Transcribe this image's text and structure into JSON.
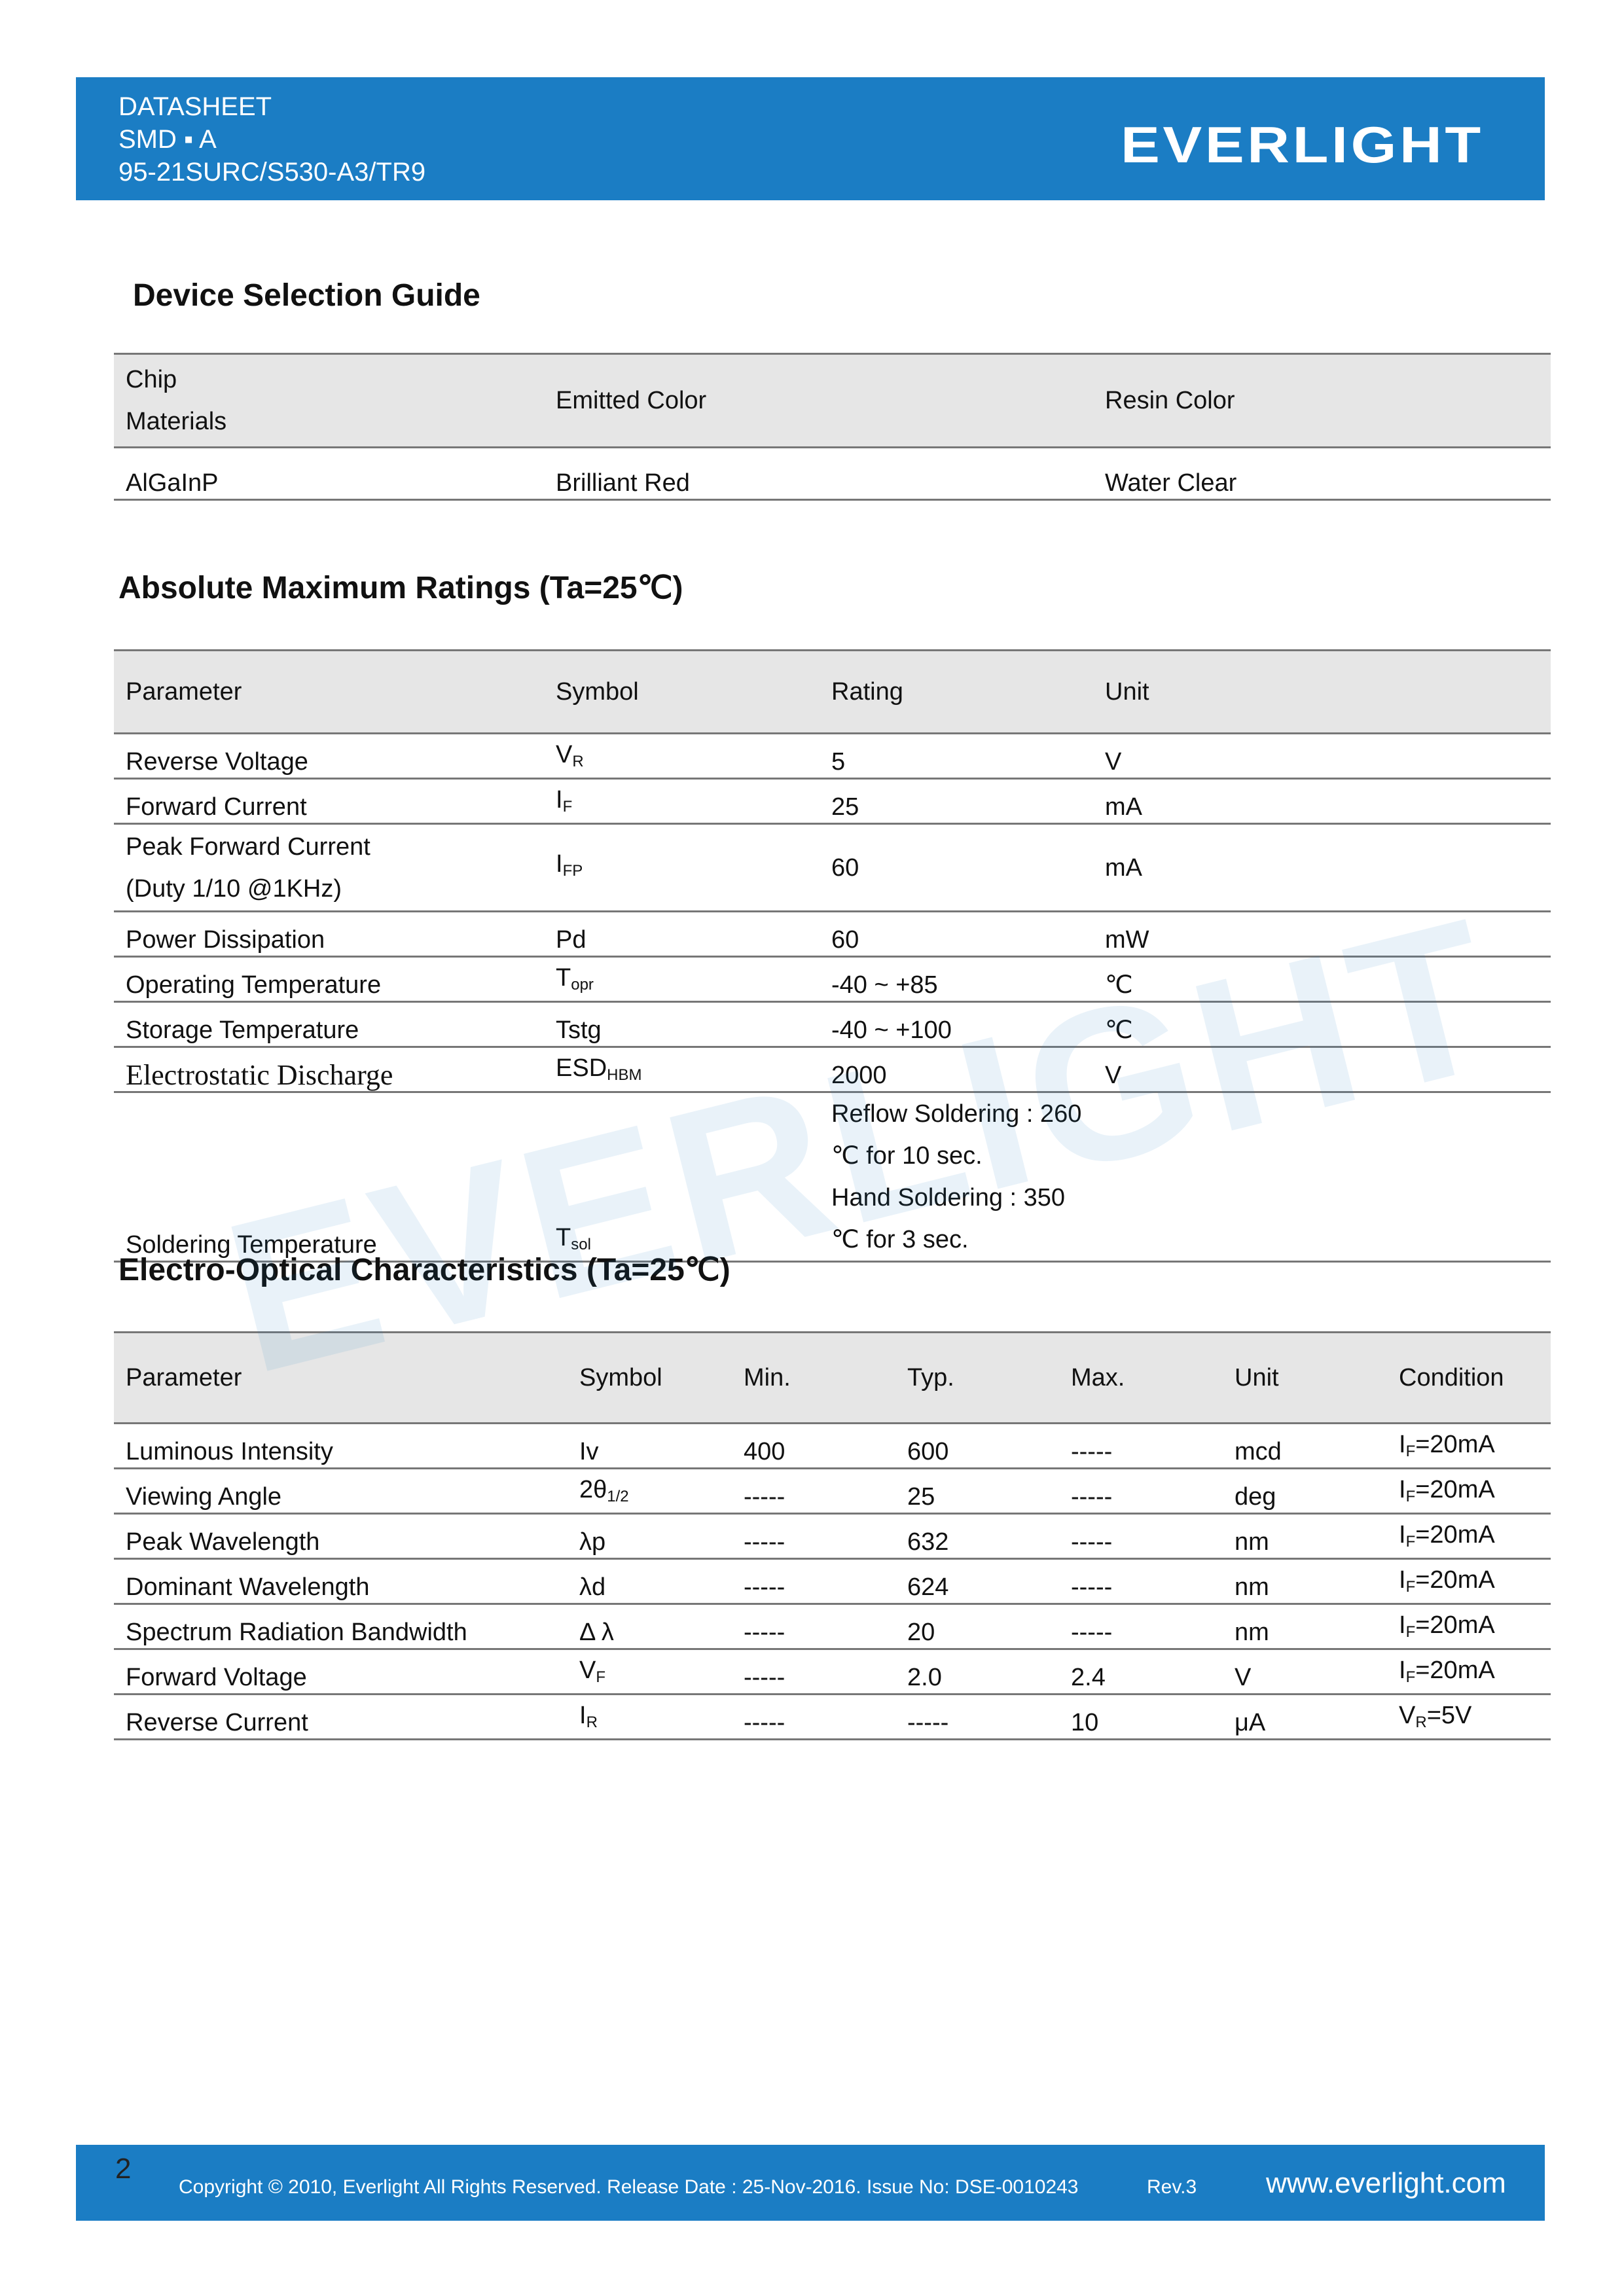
{
  "header": {
    "line1": "DATASHEET",
    "line2": "SMD ▪ A",
    "line3": "95-21SURC/S530-A3/TR9",
    "logo": "EVERLIGHT"
  },
  "watermark": "EVERLIGHT",
  "sections": [
    {
      "title": "Device Selection Guide",
      "table": {
        "header": [
          [
            "Chip",
            "Materials"
          ],
          "Emitted Color",
          "Resin Color"
        ],
        "rows": [
          [
            "AlGaInP",
            "Brilliant Red",
            "Water Clear"
          ]
        ]
      }
    },
    {
      "title": "Absolute Maximum Ratings (Ta=25℃)",
      "table": {
        "header": [
          "Parameter",
          "Symbol",
          "Rating",
          "Unit"
        ],
        "rows": [
          [
            "Reverse Voltage",
            {
              "base": "V",
              "sub": "R"
            },
            "5",
            "V"
          ],
          [
            "Forward Current",
            {
              "base": "I",
              "sub": "F"
            },
            "25",
            "mA"
          ],
          [
            [
              "Peak Forward Current",
              "(Duty 1/10 @1KHz)"
            ],
            {
              "base": "I",
              "sub": "FP"
            },
            "60",
            "mA"
          ],
          [
            "Power Dissipation",
            "Pd",
            "60",
            "mW"
          ],
          [
            "Operating Temperature",
            {
              "base": "T",
              "sub": "opr"
            },
            "-40 ~ +85",
            "℃"
          ],
          [
            "Storage Temperature",
            "Tstg",
            "-40 ~ +100",
            "℃"
          ],
          [
            "Electrostatic Discharge",
            {
              "base": "ESD",
              "sub": "HBM"
            },
            "2000",
            "V"
          ],
          [
            "Soldering Temperature",
            {
              "base": "T",
              "sub": "sol"
            },
            [
              "Reflow Soldering : 260 ℃ for 10 sec.",
              "Hand Soldering : 350 ℃ for 3 sec."
            ],
            ""
          ]
        ]
      }
    },
    {
      "title": "Electro-Optical Characteristics (Ta=25℃)",
      "table": {
        "header": [
          "Parameter",
          "Symbol",
          "Min.",
          "Typ.",
          "Max.",
          "Unit",
          "Condition"
        ],
        "rows": [
          [
            "Luminous Intensity",
            "Iv",
            "400",
            "600",
            "-----",
            "mcd",
            {
              "base": "I",
              "sub": "F",
              "rest": "=20mA"
            }
          ],
          [
            "Viewing Angle",
            {
              "base": "2θ",
              "sub": "1/2"
            },
            "-----",
            "25",
            "-----",
            "deg",
            {
              "base": "I",
              "sub": "F",
              "rest": "=20mA"
            }
          ],
          [
            "Peak Wavelength",
            "λp",
            "-----",
            "632",
            "-----",
            "nm",
            {
              "base": "I",
              "sub": "F",
              "rest": "=20mA"
            }
          ],
          [
            "Dominant Wavelength",
            "λd",
            "-----",
            "624",
            "-----",
            "nm",
            {
              "base": "I",
              "sub": "F",
              "rest": "=20mA"
            }
          ],
          [
            "Spectrum Radiation Bandwidth",
            "Δ λ",
            "-----",
            "20",
            "-----",
            "nm",
            {
              "base": "I",
              "sub": "F",
              "rest": "=20mA"
            }
          ],
          [
            "Forward Voltage",
            {
              "base": "V",
              "sub": "F"
            },
            "-----",
            "2.0",
            "2.4",
            "V",
            {
              "base": "I",
              "sub": "F",
              "rest": "=20mA"
            }
          ],
          [
            "Reverse Current",
            {
              "base": "I",
              "sub": "R"
            },
            "-----",
            "-----",
            "10",
            "μA",
            {
              "base": "V",
              "sub": "R",
              "rest": "=5V"
            }
          ]
        ]
      }
    }
  ],
  "footer": {
    "page": "2",
    "copyright": "Copyright © 2010, Everlight All Rights Reserved. Release Date : 25-Nov-2016. Issue No: DSE-0010243",
    "rev": "Rev.3",
    "url": "www.everlight.com"
  }
}
